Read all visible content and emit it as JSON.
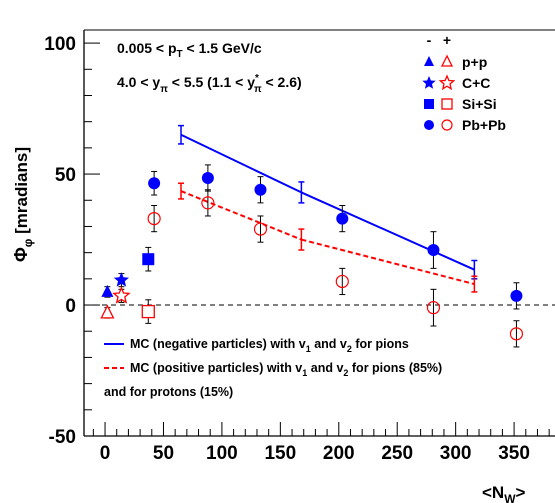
{
  "chart_data": {
    "type": "scatter",
    "xlabel": "<N",
    "xlabel_sub": "W",
    "xlabel_close": ">",
    "ylabel_main": "Φ",
    "ylabel_sub": "φ",
    "ylabel_unit": "[mradians]",
    "xlim": [
      -18,
      385
    ],
    "ylim": [
      -50,
      105
    ],
    "xticks": [
      0,
      50,
      100,
      150,
      200,
      250,
      300,
      350
    ],
    "yticks": [
      -50,
      0,
      50,
      100
    ],
    "annotations": {
      "line1": {
        "a": "0.005 < p",
        "sub": "T",
        "b": " < 1.5 GeV/c"
      },
      "line2": {
        "a": "4.0 < y",
        "sub": "π",
        "b": " < 5.5   (1.1 < y",
        "sup": "*",
        "sub2": "π",
        "c": " < 2.6)"
      }
    },
    "legend_header": {
      "minus": "-",
      "plus": "+"
    },
    "legend_systems": [
      {
        "name": "p+p",
        "marker": "triangle"
      },
      {
        "name": "C+C",
        "marker": "star"
      },
      {
        "name": "Si+Si",
        "marker": "square"
      },
      {
        "name": "Pb+Pb",
        "marker": "circle"
      }
    ],
    "colors": {
      "negative": "#0000ff",
      "positive": "#ff0000",
      "axis": "#000000"
    },
    "series": [
      {
        "name": "negative",
        "color": "#0000ff",
        "filled": true,
        "points": [
          {
            "system": "p+p",
            "x": 2,
            "y": 5,
            "err": 2
          },
          {
            "system": "C+C",
            "x": 14,
            "y": 9.5,
            "err": 2.5
          },
          {
            "system": "Si+Si",
            "x": 37,
            "y": 17.5,
            "err": 4.5
          },
          {
            "system": "Pb+Pb",
            "x": 42,
            "y": 46.5,
            "err": 4.5
          },
          {
            "system": "Pb+Pb",
            "x": 88,
            "y": 48.5,
            "err": 5
          },
          {
            "system": "Pb+Pb",
            "x": 133,
            "y": 44,
            "err": 5
          },
          {
            "system": "Pb+Pb",
            "x": 203,
            "y": 33,
            "err": 5
          },
          {
            "system": "Pb+Pb",
            "x": 281,
            "y": 21,
            "err": 7
          },
          {
            "system": "Pb+Pb",
            "x": 352,
            "y": 3.5,
            "err": 5
          }
        ]
      },
      {
        "name": "positive",
        "color": "#ff0000",
        "filled": false,
        "points": [
          {
            "system": "p+p",
            "x": 2,
            "y": -3,
            "err": 2
          },
          {
            "system": "C+C",
            "x": 14,
            "y": 3.5,
            "err": 2.5
          },
          {
            "system": "Si+Si",
            "x": 37,
            "y": -2.5,
            "err": 4.5
          },
          {
            "system": "Pb+Pb",
            "x": 42,
            "y": 33,
            "err": 5
          },
          {
            "system": "Pb+Pb",
            "x": 88,
            "y": 39,
            "err": 5
          },
          {
            "system": "Pb+Pb",
            "x": 133,
            "y": 29,
            "err": 5
          },
          {
            "system": "Pb+Pb",
            "x": 203,
            "y": 9,
            "err": 5
          },
          {
            "system": "Pb+Pb",
            "x": 281,
            "y": -1,
            "err": 7
          },
          {
            "system": "Pb+Pb",
            "x": 352,
            "y": -11,
            "err": 5
          }
        ]
      },
      {
        "name": "MC negative",
        "type": "line",
        "color": "#0000ff",
        "dashed": false,
        "points": [
          {
            "x": 65,
            "y": 65,
            "err": 3.5
          },
          {
            "x": 168,
            "y": 43,
            "err": 4
          },
          {
            "x": 316,
            "y": 13.5,
            "err": 3.5
          }
        ]
      },
      {
        "name": "MC positive",
        "type": "line",
        "color": "#ff0000",
        "dashed": true,
        "points": [
          {
            "x": 65,
            "y": 43.5,
            "err": 3
          },
          {
            "x": 168,
            "y": 25,
            "err": 4
          },
          {
            "x": 316,
            "y": 8,
            "err": 3
          }
        ]
      }
    ],
    "mc_legend": [
      {
        "color": "#0000ff",
        "dashed": false,
        "a": "MC (negative particles) with v",
        "s1": "1",
        "b": " and v",
        "s2": "2",
        "c": " for pions"
      },
      {
        "color": "#ff0000",
        "dashed": true,
        "a": "MC (positive particles) with v",
        "s1": "1",
        "b": " and v",
        "s2": "2",
        "c": " for pions (85%)"
      },
      {
        "color": null,
        "dashed": false,
        "a": "and for protons (15%)",
        "s1": "",
        "b": "",
        "s2": "",
        "c": ""
      }
    ],
    "zero_line": true,
    "grid": false
  }
}
